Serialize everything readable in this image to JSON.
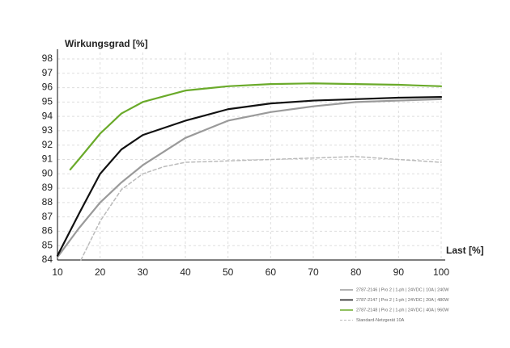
{
  "chart_data": {
    "type": "line",
    "y_label": "Wirkungsgrad [%]",
    "x_label": "Last [%]",
    "xlim": [
      10,
      100
    ],
    "xticks": [
      10,
      20,
      30,
      40,
      50,
      60,
      70,
      80,
      90,
      100
    ],
    "ylim": [
      84,
      98
    ],
    "yticks": [
      84,
      85,
      86,
      87,
      88,
      89,
      90,
      91,
      92,
      93,
      94,
      95,
      96,
      97,
      98
    ],
    "grid": true,
    "legend": "bottom-right",
    "series": [
      {
        "name": "2787-2146 | Pro 2 | 1-ph | 24VDC | 10A | 240W",
        "color": "#9a9a9a",
        "dashed": false,
        "x": [
          10,
          15,
          20,
          25,
          30,
          40,
          50,
          60,
          70,
          80,
          90,
          100
        ],
        "values": [
          84.2,
          86.2,
          88.0,
          89.4,
          90.6,
          92.5,
          93.7,
          94.3,
          94.7,
          95.0,
          95.1,
          95.2
        ]
      },
      {
        "name": "2787-2147 | Pro 2 | 1-ph | 24VDC | 20A | 480W",
        "color": "#111111",
        "dashed": false,
        "x": [
          10,
          15,
          20,
          25,
          30,
          40,
          50,
          60,
          70,
          80,
          90,
          100
        ],
        "values": [
          84.3,
          87.2,
          90.0,
          91.7,
          92.7,
          93.7,
          94.5,
          94.9,
          95.1,
          95.2,
          95.3,
          95.35
        ]
      },
      {
        "name": "2787-2148 | Pro 2 | 1-ph | 24VDC | 40A | 960W",
        "color": "#6aaa2a",
        "dashed": false,
        "x": [
          13,
          15,
          20,
          25,
          30,
          35,
          40,
          50,
          60,
          70,
          80,
          90,
          100
        ],
        "values": [
          90.3,
          91.0,
          92.8,
          94.2,
          95.0,
          95.4,
          95.8,
          96.1,
          96.25,
          96.3,
          96.25,
          96.2,
          96.1
        ]
      },
      {
        "name": "Standard-Netzgerät 10A",
        "color": "#bbbbbb",
        "dashed": true,
        "x": [
          15.5,
          20,
          25,
          30,
          35,
          40,
          50,
          60,
          70,
          80,
          90,
          100
        ],
        "values": [
          84.0,
          86.7,
          88.9,
          90.0,
          90.5,
          90.8,
          90.9,
          91.0,
          91.1,
          91.2,
          91.0,
          90.8
        ]
      }
    ]
  }
}
